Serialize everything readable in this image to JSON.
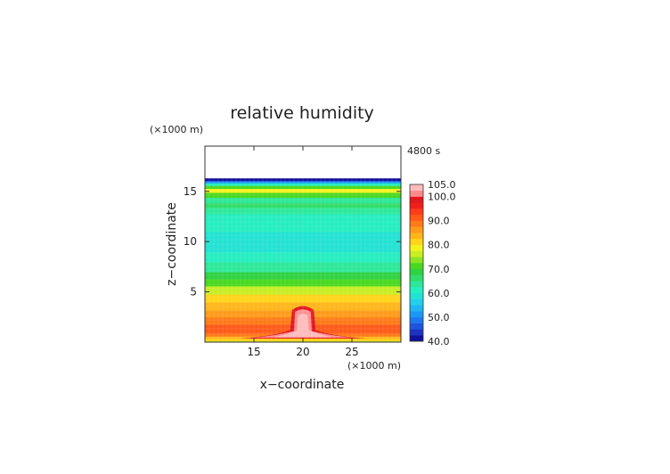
{
  "chart_data": {
    "type": "heatmap",
    "title": "relative humidity",
    "time_label": "4800 s",
    "xlabel": "x−coordinate",
    "ylabel": "z−coordinate",
    "x_unit": "(×1000 m)",
    "z_unit": "(×1000 m)",
    "xlim": [
      10,
      30
    ],
    "zlim": [
      0,
      19.5
    ],
    "x_ticks": [
      "15",
      "20",
      "25"
    ],
    "z_ticks": [
      "5",
      "10",
      "15"
    ],
    "x_tick_values": [
      15,
      20,
      25
    ],
    "z_tick_values": [
      5,
      10,
      15
    ],
    "colorbar": {
      "levels": [
        40,
        42.5,
        45,
        47.5,
        50,
        52.5,
        55,
        57.5,
        60,
        62.5,
        65,
        67.5,
        70,
        72.5,
        75,
        77.5,
        80,
        82.5,
        85,
        87.5,
        90,
        92.5,
        95,
        97.5,
        100,
        105
      ],
      "colors": [
        "#10109c",
        "#1d34c0",
        "#1f55dd",
        "#1d78ef",
        "#1b98f6",
        "#1fb5f3",
        "#21d0eb",
        "#22e2d3",
        "#25eec0",
        "#2de89a",
        "#31dc6c",
        "#2fd241",
        "#48d820",
        "#8ce424",
        "#c8ee24",
        "#f2f21d",
        "#ffd51a",
        "#ffb61a",
        "#ff9a1a",
        "#ff7a18",
        "#ff5a18",
        "#ff3c18",
        "#f01e18",
        "#e01820",
        "#ff8a8a",
        "#ffbcbc"
      ],
      "label_values": [
        "105.0",
        "100.0",
        "90.0",
        "80.0",
        "70.0",
        "60.0",
        "50.0",
        "40.0"
      ]
    },
    "profile": {
      "z_km": [
        0,
        0.15,
        0.35,
        0.6,
        0.9,
        1.3,
        1.8,
        2.5,
        3.2,
        4.0,
        4.8,
        5.6,
        6.3,
        7.0,
        8.0,
        9.0,
        10.0,
        11.0,
        12.0,
        12.8,
        13.4,
        13.9,
        14.4,
        14.9,
        15.3,
        15.6,
        15.85,
        16.0,
        16.1,
        16.2,
        16.3
      ],
      "rh": [
        76,
        80,
        84,
        88,
        92,
        90,
        88,
        86,
        84,
        80,
        76,
        71,
        68,
        63,
        60,
        59,
        59,
        60,
        61,
        63,
        66,
        63,
        71,
        78,
        72,
        60,
        52,
        45,
        41,
        40,
        null
      ]
    },
    "plume": {
      "center_x_km": 20,
      "top_z_km": 3.8,
      "rh_min": 100,
      "rh_max": 105
    }
  }
}
